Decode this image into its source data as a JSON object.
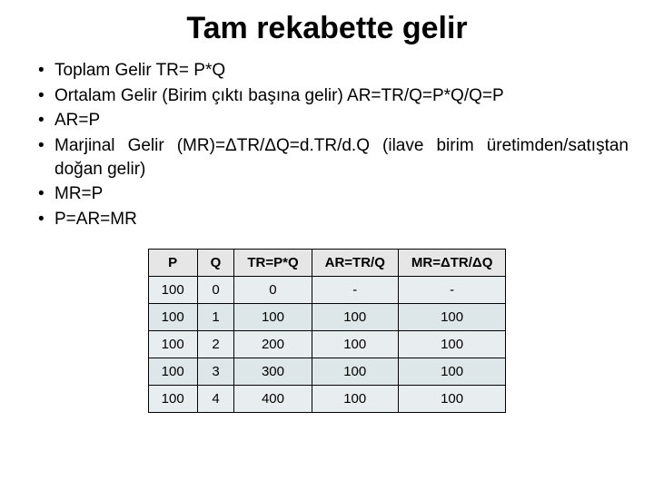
{
  "title": "Tam rekabette gelir",
  "bullets": [
    "Toplam Gelir TR= P*Q",
    "Ortalam Gelir (Birim çıktı başına gelir) AR=TR/Q=P*Q/Q=P",
    "AR=P",
    "Marjinal Gelir (MR)=ΔTR/ΔQ=d.TR/d.Q (ilave birim üretimden/satıştan doğan gelir)",
    "MR=P",
    "P=AR=MR"
  ],
  "table": {
    "type": "table",
    "columns": [
      "P",
      "Q",
      "TR=P*Q",
      "AR=TR/Q",
      "MR=ΔTR/ΔQ"
    ],
    "rows": [
      [
        "100",
        "0",
        "0",
        "-",
        "-"
      ],
      [
        "100",
        "1",
        "100",
        "100",
        "100"
      ],
      [
        "100",
        "2",
        "200",
        "100",
        "100"
      ],
      [
        "100",
        "3",
        "300",
        "100",
        "100"
      ],
      [
        "100",
        "4",
        "400",
        "100",
        "100"
      ]
    ],
    "header_bg": "#e6e6e6",
    "row_bg_odd": "#e8eef0",
    "row_bg_even": "#dde6e8",
    "border_color": "#000000",
    "font_size": 15
  },
  "colors": {
    "background": "#ffffff",
    "text": "#000000"
  },
  "typography": {
    "title_fontsize": 34,
    "body_fontsize": 19,
    "font_family": "Arial"
  }
}
